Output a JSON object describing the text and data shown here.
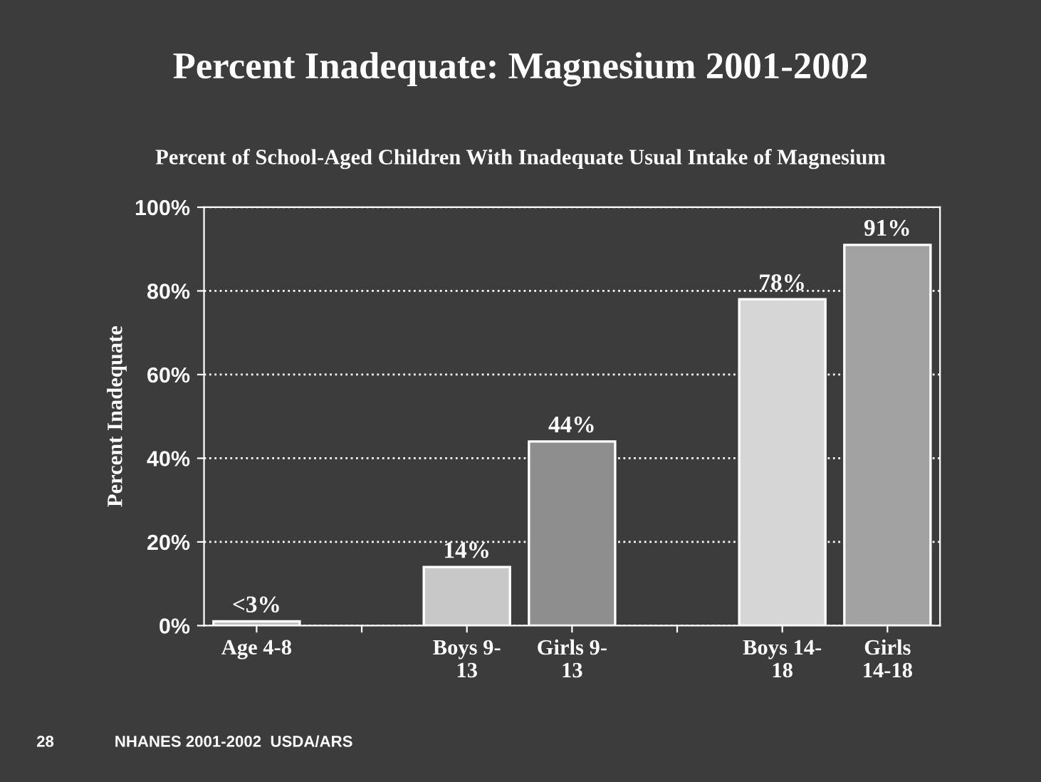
{
  "chart_data": {
    "type": "bar",
    "title": "Percent Inadequate: Magnesium 2001-2002",
    "subtitle": "Percent of School-Aged Children With Inadequate Usual Intake of Magnesium",
    "ylabel": "Percent Inadequate",
    "categories": [
      "Age 4-8",
      null,
      "Boys 9-\n13",
      "Girls 9-\n13",
      null,
      "Boys 14-\n18",
      "Girls\n14-18"
    ],
    "values": [
      1,
      null,
      14,
      44,
      null,
      78,
      91
    ],
    "value_labels": [
      "<3%",
      null,
      "14%",
      "44%",
      null,
      "78%",
      "91%"
    ],
    "colors": [
      "#b8b8b8",
      "#b8b8b8",
      "#c8c8c8",
      "#8e8e8e",
      "#b8b8b8",
      "#d6d6d6",
      "#a2a2a2"
    ],
    "ylim": [
      0,
      100
    ],
    "yticks": [
      {
        "value": 0,
        "label": "0%"
      },
      {
        "value": 20,
        "label": "20%"
      },
      {
        "value": 40,
        "label": "40%"
      },
      {
        "value": 60,
        "label": "60%"
      },
      {
        "value": 80,
        "label": "80%"
      },
      {
        "value": 100,
        "label": "100%"
      }
    ],
    "grid": "y",
    "annotations": [
      "28",
      "NHANES 2001-2002  USDA/ARS"
    ]
  }
}
